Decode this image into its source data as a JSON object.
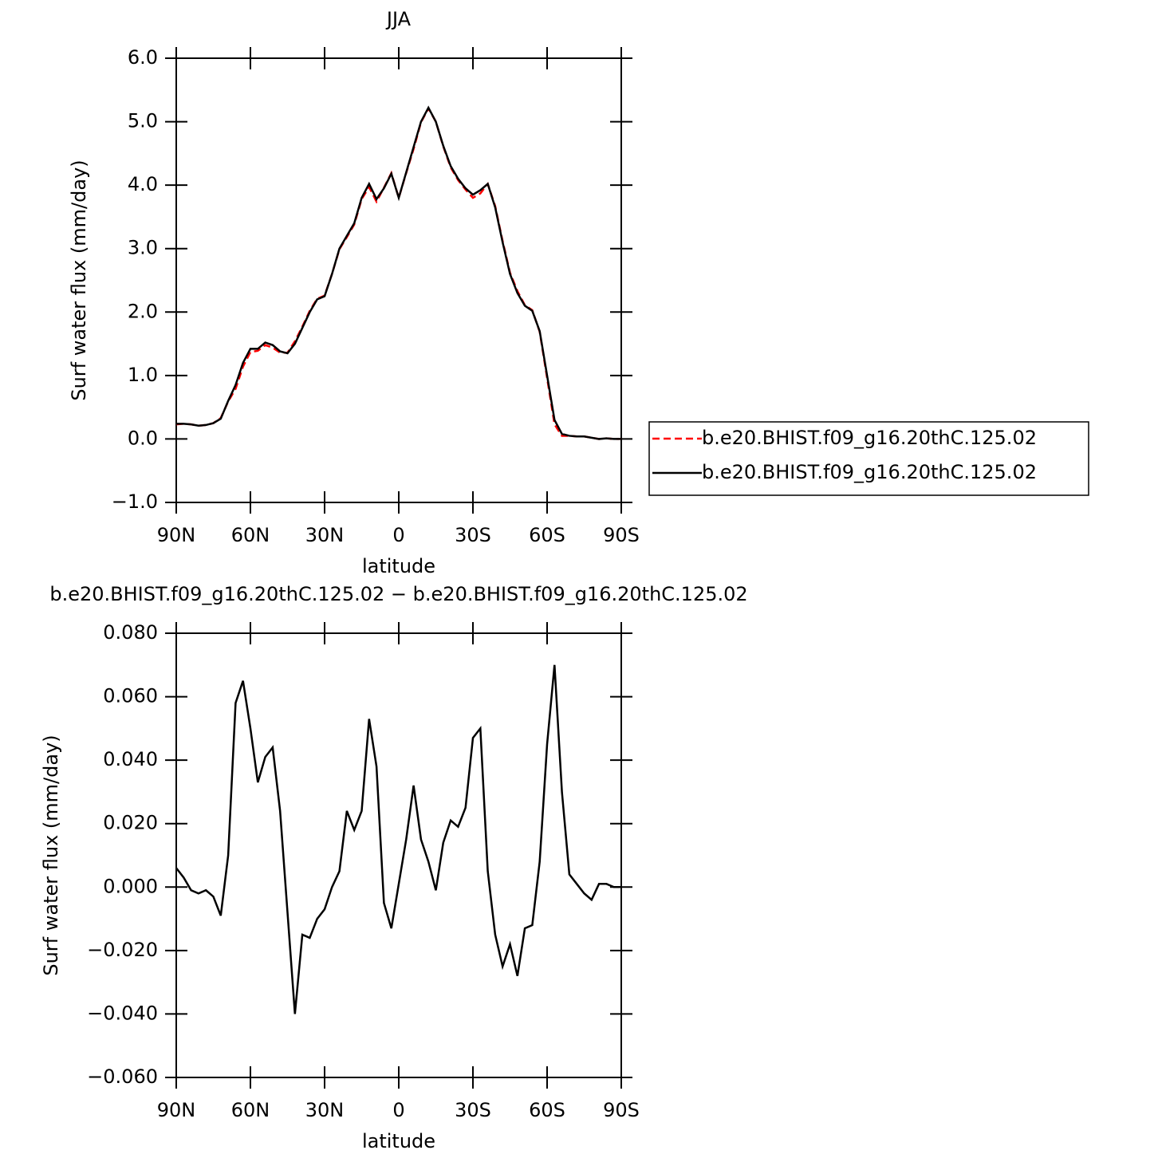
{
  "chart_data": [
    {
      "type": "line",
      "title": "JJA",
      "xlabel": "latitude",
      "ylabel": "Surf water flux (mm/day)",
      "x": [
        90,
        87,
        84,
        81,
        78,
        75,
        72,
        69,
        66,
        63,
        60,
        57,
        54,
        51,
        48,
        45,
        42,
        39,
        36,
        33,
        30,
        27,
        24,
        21,
        18,
        15,
        12,
        9,
        6,
        3,
        0,
        -3,
        -6,
        -9,
        -12,
        -15,
        -18,
        -21,
        -24,
        -27,
        -30,
        -33,
        -36,
        -39,
        -42,
        -45,
        -48,
        -51,
        -54,
        -57,
        -60,
        -63,
        -66,
        -69,
        -72,
        -75,
        -78,
        -81,
        -84,
        -87,
        -90
      ],
      "series": [
        {
          "name": "b.e20.BHIST.f09_g16.20thC.125.02",
          "color": "#ff0000",
          "linestyle": "dashed",
          "values": [
            0.23,
            0.24,
            0.23,
            0.21,
            0.22,
            0.25,
            0.33,
            0.59,
            0.79,
            1.14,
            1.37,
            1.39,
            1.48,
            1.44,
            1.36,
            1.36,
            1.54,
            1.77,
            2.02,
            2.21,
            2.26,
            2.6,
            2.99,
            3.18,
            3.38,
            3.78,
            3.97,
            3.74,
            3.96,
            4.19,
            3.8,
            4.19,
            4.57,
            4.99,
            5.21,
            5.0,
            4.61,
            4.28,
            4.08,
            3.93,
            3.8,
            3.87,
            4.02,
            3.67,
            3.12,
            2.62,
            2.33,
            2.11,
            2.03,
            1.69,
            0.96,
            0.23,
            0.05,
            0.05,
            0.04,
            0.04,
            0.02,
            0.0,
            0.01,
            0.0,
            0.0
          ]
        },
        {
          "name": "b.e20.BHIST.f09_g16.20thC.125.02",
          "color": "#000000",
          "linestyle": "solid",
          "values": [
            0.24,
            0.24,
            0.23,
            0.21,
            0.22,
            0.25,
            0.32,
            0.6,
            0.85,
            1.2,
            1.42,
            1.42,
            1.52,
            1.48,
            1.38,
            1.35,
            1.5,
            1.75,
            2.0,
            2.2,
            2.25,
            2.6,
            3.0,
            3.2,
            3.4,
            3.8,
            4.02,
            3.78,
            3.95,
            4.18,
            3.8,
            4.2,
            4.6,
            5.0,
            5.22,
            5.0,
            4.62,
            4.3,
            4.1,
            3.95,
            3.85,
            3.92,
            4.02,
            3.65,
            3.1,
            2.6,
            2.3,
            2.1,
            2.02,
            1.7,
            1.0,
            0.3,
            0.08,
            0.05,
            0.04,
            0.04,
            0.02,
            0.0,
            0.01,
            0.0,
            0.0
          ]
        }
      ],
      "xlim": [
        90,
        -90
      ],
      "xticks": [
        {
          "value": 90,
          "label": "90N"
        },
        {
          "value": 60,
          "label": "60N"
        },
        {
          "value": 30,
          "label": "30N"
        },
        0,
        {
          "value": -30,
          "label": "30S"
        },
        {
          "value": -60,
          "label": "60S"
        },
        {
          "value": -90,
          "label": "90S"
        }
      ],
      "ylim": [
        -1,
        6
      ],
      "yticks": [
        {
          "value": -1,
          "label": "−1.0"
        },
        {
          "value": 0,
          "label": "0.0"
        },
        {
          "value": 1,
          "label": "1.0"
        },
        {
          "value": 2,
          "label": "2.0"
        },
        {
          "value": 3,
          "label": "3.0"
        },
        {
          "value": 4,
          "label": "4.0"
        },
        {
          "value": 5,
          "label": "5.0"
        },
        {
          "value": 6,
          "label": "6.0"
        }
      ],
      "legend": "right"
    },
    {
      "type": "line",
      "title": "b.e20.BHIST.f09_g16.20thC.125.02 − b.e20.BHIST.f09_g16.20thC.125.02",
      "xlabel": "latitude",
      "ylabel": "Surf water flux (mm/day)",
      "x": [
        90,
        87,
        84,
        81,
        78,
        75,
        72,
        69,
        66,
        63,
        60,
        57,
        54,
        51,
        48,
        45,
        42,
        39,
        36,
        33,
        30,
        27,
        24,
        21,
        18,
        15,
        12,
        9,
        6,
        3,
        0,
        -3,
        -6,
        -9,
        -12,
        -15,
        -18,
        -21,
        -24,
        -27,
        -30,
        -33,
        -36,
        -39,
        -42,
        -45,
        -48,
        -51,
        -54,
        -57,
        -60,
        -63,
        -66,
        -69,
        -72,
        -75,
        -78,
        -81,
        -84,
        -87,
        -90
      ],
      "series": [
        {
          "color": "#000000",
          "linestyle": "solid",
          "values": [
            0.006,
            0.003,
            -0.001,
            -0.002,
            -0.001,
            -0.003,
            -0.009,
            0.01,
            0.058,
            0.065,
            0.05,
            0.033,
            0.041,
            0.044,
            0.024,
            -0.008,
            -0.04,
            -0.015,
            -0.016,
            -0.01,
            -0.007,
            0.0,
            0.005,
            0.024,
            0.018,
            0.024,
            0.053,
            0.038,
            -0.005,
            -0.013,
            0.001,
            0.015,
            0.032,
            0.015,
            0.008,
            -0.001,
            0.014,
            0.021,
            0.019,
            0.025,
            0.047,
            0.05,
            0.005,
            -0.015,
            -0.025,
            -0.018,
            -0.028,
            -0.013,
            -0.012,
            0.008,
            0.045,
            0.07,
            0.03,
            0.004,
            0.001,
            -0.002,
            -0.004,
            0.001,
            0.001,
            0.0,
            0.0
          ]
        }
      ],
      "xlim": [
        90,
        -90
      ],
      "xticks": [
        {
          "value": 90,
          "label": "90N"
        },
        {
          "value": 60,
          "label": "60N"
        },
        {
          "value": 30,
          "label": "30N"
        },
        0,
        {
          "value": -30,
          "label": "30S"
        },
        {
          "value": -60,
          "label": "60S"
        },
        {
          "value": -90,
          "label": "90S"
        }
      ],
      "ylim": [
        -0.06,
        0.08
      ],
      "yticks": [
        {
          "value": -0.06,
          "label": "−0.060"
        },
        {
          "value": -0.04,
          "label": "−0.040"
        },
        {
          "value": -0.02,
          "label": "−0.020"
        },
        {
          "value": 0,
          "label": "0.000"
        },
        {
          "value": 0.02,
          "label": "0.020"
        },
        {
          "value": 0.04,
          "label": "0.040"
        },
        {
          "value": 0.06,
          "label": "0.060"
        },
        {
          "value": 0.08,
          "label": "0.080"
        }
      ]
    }
  ]
}
